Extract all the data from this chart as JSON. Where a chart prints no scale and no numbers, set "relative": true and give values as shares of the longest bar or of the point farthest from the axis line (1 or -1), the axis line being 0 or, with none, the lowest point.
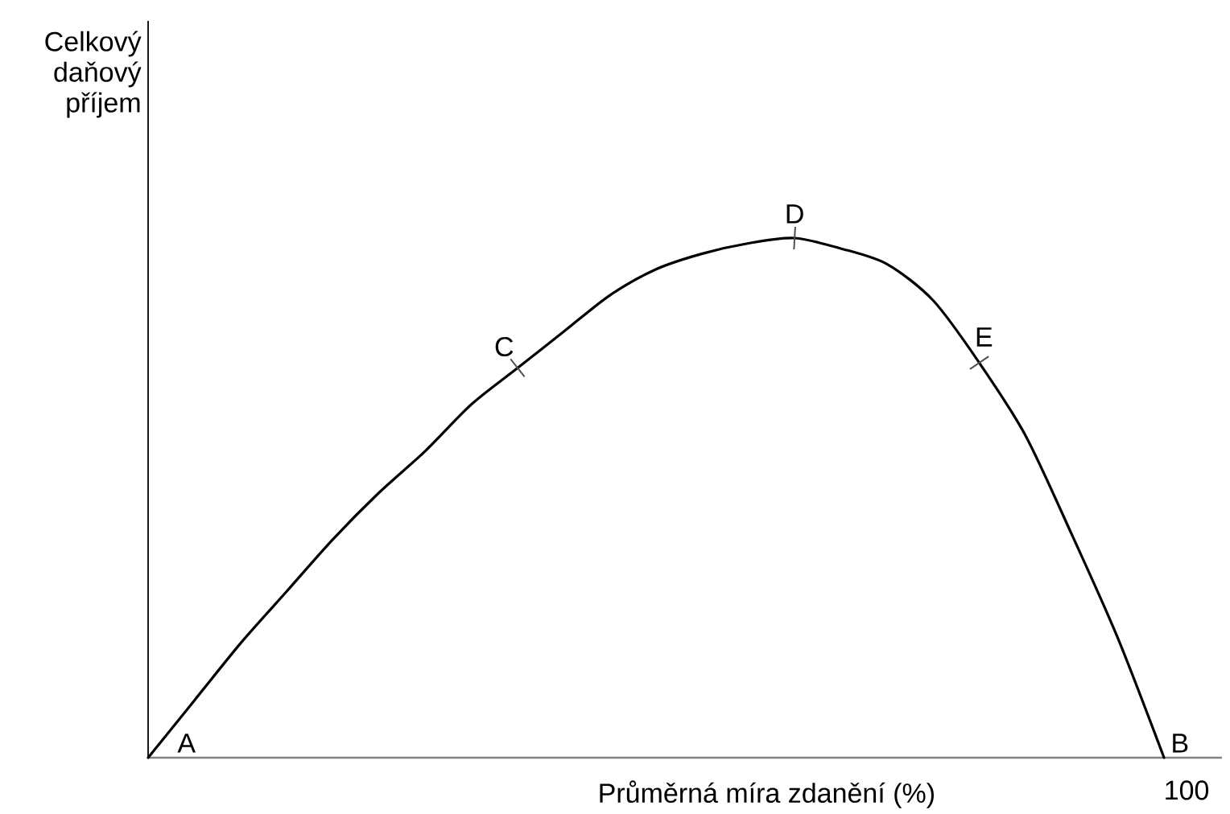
{
  "chart_data": {
    "type": "line",
    "xlabel": "Průměrná míra zdanění (%)",
    "ylabel": "Celkový daňový příjem",
    "relative": true,
    "categories": [
      null,
      null,
      null,
      null,
      null,
      null,
      null,
      null,
      null,
      null,
      null,
      null,
      null,
      null,
      null,
      null,
      null,
      null,
      null,
      null,
      null,
      null,
      null
    ],
    "series": [
      {
        "color": "#000000",
        "values": [
          0,
          0.11,
          0.22,
          0.32,
          0.42,
          0.51,
          0.59,
          0.68,
          0.75,
          0.82,
          0.89,
          0.94,
          0.97,
          0.99,
          1,
          0.98,
          0.95,
          0.88,
          0.76,
          0.62,
          0.43,
          0.23,
          0
        ]
      }
    ],
    "line_style": "solid",
    "annotations": [
      "A",
      "B",
      {
        "text": "C",
        "y": 0.75
      },
      {
        "text": "D",
        "y": 1
      },
      {
        "text": "E",
        "y": 0.76
      },
      "100"
    ]
  }
}
